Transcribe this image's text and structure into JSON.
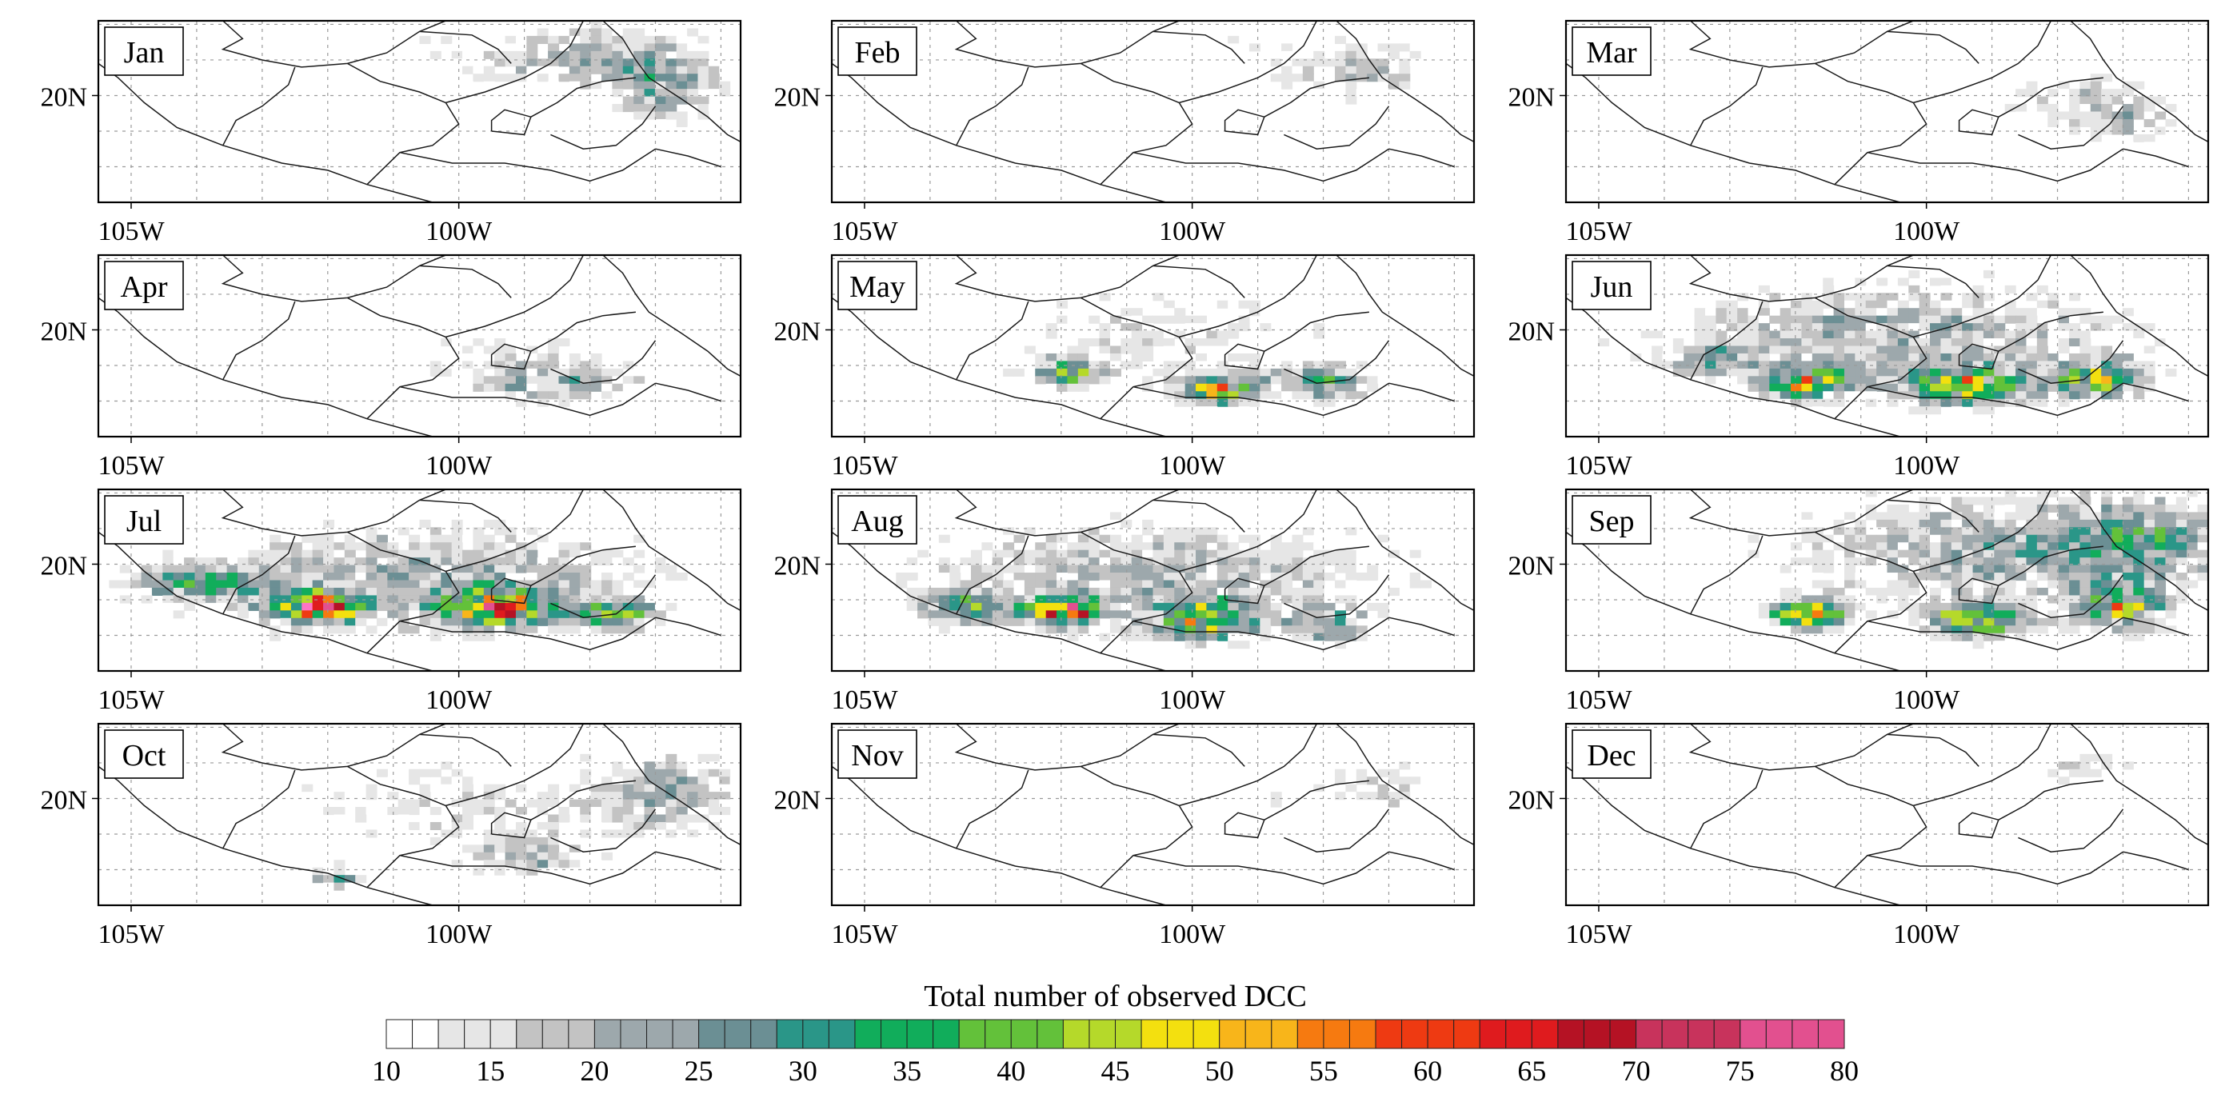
{
  "figure": {
    "colorbar_title": "Total number of observed DCC",
    "colorbar_ticks": [
      "10",
      "15",
      "20",
      "25",
      "30",
      "35",
      "40",
      "45",
      "50",
      "55",
      "60",
      "65",
      "70",
      "75",
      "80"
    ],
    "x_tick_labels": [
      "105W",
      "100W"
    ],
    "y_tick_label": "20N"
  },
  "colors": {
    "scale": [
      {
        "v": 10,
        "c": "#ffffff"
      },
      {
        "v": 12,
        "c": "#e6e6e6"
      },
      {
        "v": 16,
        "c": "#c3c3c3"
      },
      {
        "v": 20,
        "c": "#9da8ac"
      },
      {
        "v": 25,
        "c": "#6b8f94"
      },
      {
        "v": 29,
        "c": "#2a9688"
      },
      {
        "v": 33,
        "c": "#11ad5b"
      },
      {
        "v": 38,
        "c": "#63c13a"
      },
      {
        "v": 42,
        "c": "#b5d92a"
      },
      {
        "v": 46,
        "c": "#f3e00f"
      },
      {
        "v": 50,
        "c": "#f8b51a"
      },
      {
        "v": 54,
        "c": "#f67a10"
      },
      {
        "v": 58,
        "c": "#ee3a12"
      },
      {
        "v": 62,
        "c": "#df1b1e"
      },
      {
        "v": 66,
        "c": "#b51224"
      },
      {
        "v": 70,
        "c": "#c8335c"
      },
      {
        "v": 75,
        "c": "#e2508f"
      },
      {
        "v": 80,
        "c": "#ff74c4"
      }
    ]
  },
  "chart_data": {
    "type": "heatmap",
    "title": "Total number of observed DCC",
    "xlabel": "",
    "ylabel": "",
    "xlim": [
      -105.5,
      -95.7
    ],
    "ylim": [
      17.0,
      22.1
    ],
    "x_ticks": [
      -105,
      -100
    ],
    "y_ticks": [
      20
    ],
    "colorbar_range": [
      10,
      80
    ],
    "grid": true,
    "panels": [
      {
        "month": "Jan",
        "bg": {
          "c": [
            -99.5,
            21.0
          ],
          "s": [
            2.2,
            1.0
          ],
          "a": 7
        },
        "hot": [
          {
            "c": [
              -96.8,
              20.1
            ],
            "s": [
              0.9,
              0.9
            ],
            "a": 17
          },
          {
            "c": [
              -97.6,
              21.2
            ],
            "s": [
              1.5,
              0.9
            ],
            "a": 12
          }
        ],
        "text": []
      },
      {
        "month": "Feb",
        "bg": {
          "c": [
            -99.5,
            21.0
          ],
          "s": [
            2.2,
            1.0
          ],
          "a": 6
        },
        "hot": [
          {
            "c": [
              -97.3,
              20.7
            ],
            "s": [
              1.0,
              1.0
            ],
            "a": 10
          }
        ],
        "text": []
      },
      {
        "month": "Mar",
        "bg": {
          "c": [
            -98.5,
            19.7
          ],
          "s": [
            1.8,
            1.0
          ],
          "a": 6
        },
        "hot": [
          {
            "c": [
              -97.0,
              19.5
            ],
            "s": [
              1.0,
              1.0
            ],
            "a": 11
          }
        ],
        "text": []
      },
      {
        "month": "Apr",
        "bg": {
          "c": [
            -99.5,
            19.4
          ],
          "s": [
            2.0,
            1.0
          ],
          "a": 6
        },
        "hot": [
          {
            "c": [
              -98.5,
              18.5
            ],
            "s": [
              1.3,
              0.6
            ],
            "a": 16
          }
        ],
        "text": []
      },
      {
        "month": "May",
        "bg": {
          "c": [
            -100.5,
            19.8
          ],
          "s": [
            3.0,
            1.4
          ],
          "a": 9
        },
        "hot": [
          {
            "c": [
              -101.9,
              18.8
            ],
            "s": [
              0.5,
              0.35
            ],
            "a": 30
          },
          {
            "c": [
              -99.6,
              18.3
            ],
            "s": [
              0.6,
              0.4
            ],
            "a": 38
          },
          {
            "c": [
              -98.0,
              18.5
            ],
            "s": [
              0.8,
              0.5
            ],
            "a": 22
          }
        ],
        "text": []
      },
      {
        "month": "Jun",
        "bg": {
          "c": [
            -100.5,
            19.8
          ],
          "s": [
            4.0,
            1.6
          ],
          "a": 16
        },
        "hot": [
          {
            "c": [
              -103.3,
              19.1
            ],
            "s": [
              0.6,
              0.35
            ],
            "a": 18
          },
          {
            "c": [
              -101.8,
              18.5
            ],
            "s": [
              0.6,
              0.4
            ],
            "a": 38
          },
          {
            "c": [
              -99.4,
              18.4
            ],
            "s": [
              0.9,
              0.5
            ],
            "a": 34
          },
          {
            "c": [
              -97.4,
              18.6
            ],
            "s": [
              0.7,
              0.5
            ],
            "a": 30
          }
        ],
        "text": []
      },
      {
        "month": "Jul",
        "bg": {
          "c": [
            -100.5,
            19.6
          ],
          "s": [
            4.0,
            1.6
          ],
          "a": 16
        },
        "hot": [
          {
            "c": [
              -104.0,
              19.5
            ],
            "s": [
              0.8,
              0.4
            ],
            "a": 26
          },
          {
            "c": [
              -102.2,
              18.8
            ],
            "s": [
              0.6,
              0.4
            ],
            "a": 56
          },
          {
            "c": [
              -99.4,
              18.8
            ],
            "s": [
              0.8,
              0.5
            ],
            "a": 42
          },
          {
            "c": [
              -97.6,
              18.6
            ],
            "s": [
              0.6,
              0.4
            ],
            "a": 26
          }
        ],
        "text": []
      },
      {
        "month": "Aug",
        "bg": {
          "c": [
            -100.5,
            19.7
          ],
          "s": [
            4.0,
            1.6
          ],
          "a": 15
        },
        "hot": [
          {
            "c": [
              -103.4,
              18.8
            ],
            "s": [
              0.8,
              0.4
            ],
            "a": 24
          },
          {
            "c": [
              -101.9,
              18.7
            ],
            "s": [
              0.5,
              0.35
            ],
            "a": 52
          },
          {
            "c": [
              -99.8,
              18.4
            ],
            "s": [
              0.8,
              0.5
            ],
            "a": 34
          },
          {
            "c": [
              -97.9,
              18.3
            ],
            "s": [
              0.5,
              0.5
            ],
            "a": 24
          }
        ],
        "text": []
      },
      {
        "month": "Sep",
        "bg": {
          "c": [
            -98.5,
            20.4
          ],
          "s": [
            3.5,
            1.6
          ],
          "a": 19
        },
        "hot": [
          {
            "c": [
              -101.8,
              18.6
            ],
            "s": [
              0.6,
              0.4
            ],
            "a": 40
          },
          {
            "c": [
              -99.2,
              18.4
            ],
            "s": [
              0.8,
              0.5
            ],
            "a": 34
          },
          {
            "c": [
              -97.0,
              18.8
            ],
            "s": [
              0.6,
              0.6
            ],
            "a": 34
          },
          {
            "c": [
              -96.6,
              20.8
            ],
            "s": [
              1.0,
              1.0
            ],
            "a": 12
          }
        ],
        "text": []
      },
      {
        "month": "Oct",
        "bg": {
          "c": [
            -99.5,
            19.8
          ],
          "s": [
            3.5,
            1.5
          ],
          "a": 9
        },
        "hot": [
          {
            "c": [
              -101.9,
              17.8
            ],
            "s": [
              0.4,
              0.35
            ],
            "a": 22
          },
          {
            "c": [
              -99.0,
              18.3
            ],
            "s": [
              0.8,
              0.6
            ],
            "a": 14
          },
          {
            "c": [
              -96.8,
              20.2
            ],
            "s": [
              1.0,
              1.0
            ],
            "a": 14
          }
        ],
        "text": []
      },
      {
        "month": "Nov",
        "bg": {
          "c": [
            -98.5,
            20.0
          ],
          "s": [
            2.5,
            1.2
          ],
          "a": 5
        },
        "hot": [
          {
            "c": [
              -97.0,
              20.4
            ],
            "s": [
              0.8,
              0.8
            ],
            "a": 8
          }
        ],
        "text": []
      },
      {
        "month": "Dec",
        "bg": {
          "c": [
            -98.0,
            20.8
          ],
          "s": [
            1.5,
            0.8
          ],
          "a": 4
        },
        "hot": [
          {
            "c": [
              -97.6,
              21.0
            ],
            "s": [
              0.6,
              0.4
            ],
            "a": 8
          }
        ],
        "text": []
      }
    ]
  }
}
